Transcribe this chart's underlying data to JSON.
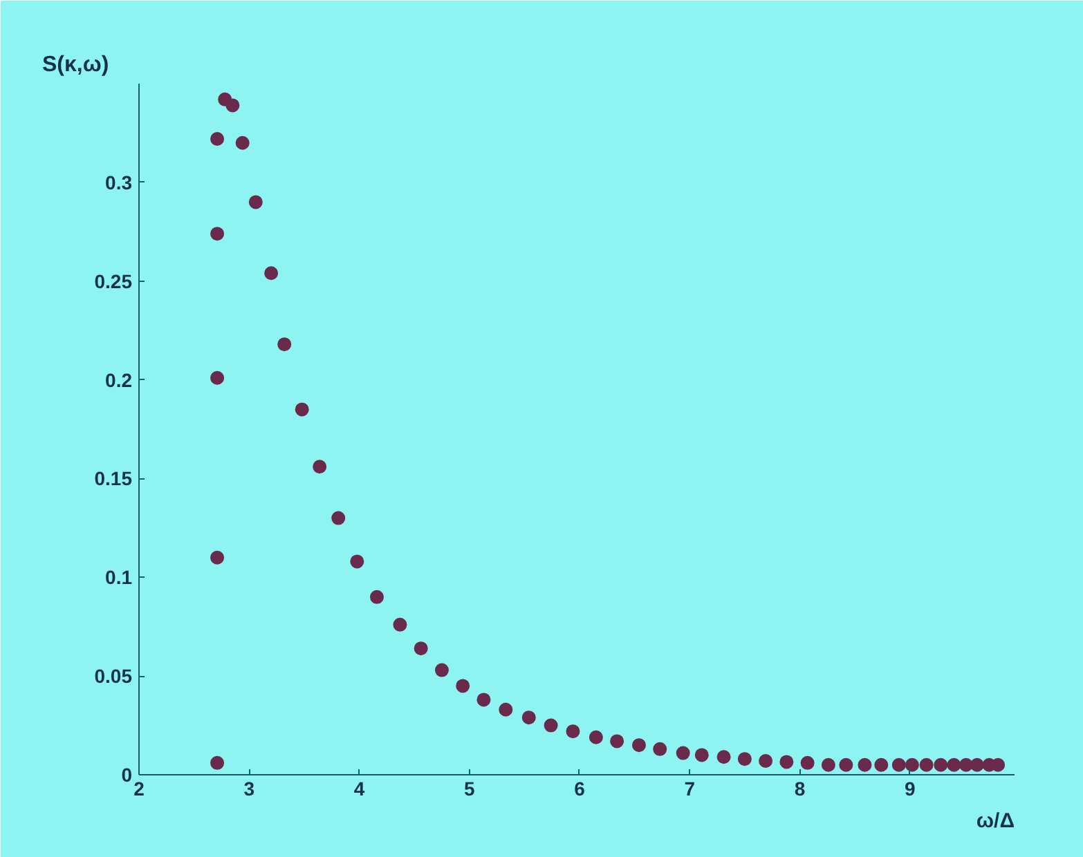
{
  "chart_data": {
    "type": "scatter",
    "xlabel": "ω/Δ",
    "ylabel": "S(κ,ω)",
    "xlim": [
      2,
      9.95
    ],
    "ylim": [
      0,
      0.35
    ],
    "xticks": [
      2,
      3,
      4,
      5,
      6,
      7,
      8,
      9
    ],
    "yticks": [
      0,
      0.05,
      0.1,
      0.15,
      0.2,
      0.25,
      0.3
    ],
    "grid": false,
    "marker": "circle",
    "series": [
      {
        "color": "#6a2a4c",
        "x": [
          2.71,
          2.71,
          2.71,
          2.71,
          2.71,
          2.78,
          2.85,
          2.94,
          3.06,
          3.2,
          3.32,
          3.48,
          3.64,
          3.81,
          3.98,
          4.16,
          4.37,
          4.56,
          4.75,
          4.94,
          5.13,
          5.33,
          5.54,
          5.74,
          5.94,
          6.15,
          6.34,
          6.54,
          6.73,
          6.94,
          7.11,
          7.31,
          7.5,
          7.69,
          7.88,
          8.07,
          8.26,
          8.42,
          8.59,
          8.74,
          8.9,
          9.02,
          9.15,
          9.28,
          9.4,
          9.51,
          9.61,
          9.72,
          9.8
        ],
        "values": [
          0.006,
          0.11,
          0.201,
          0.274,
          0.322,
          0.342,
          0.339,
          0.32,
          0.29,
          0.254,
          0.218,
          0.185,
          0.156,
          0.13,
          0.108,
          0.09,
          0.076,
          0.064,
          0.053,
          0.045,
          0.038,
          0.033,
          0.029,
          0.025,
          0.022,
          0.019,
          0.017,
          0.015,
          0.013,
          0.011,
          0.01,
          0.009,
          0.008,
          0.007,
          0.0065,
          0.006,
          0.005,
          0.005,
          0.005,
          0.005,
          0.005,
          0.005,
          0.005,
          0.005,
          0.005,
          0.005,
          0.005,
          0.005,
          0.005
        ]
      }
    ]
  }
}
